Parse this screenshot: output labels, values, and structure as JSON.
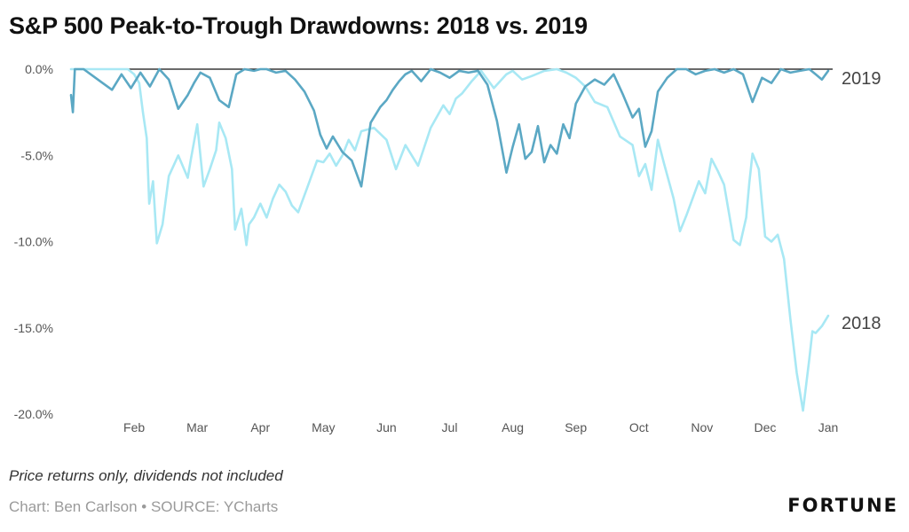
{
  "title": "S&P 500 Peak-to-Trough Drawdowns: 2018 vs. 2019",
  "footnote": "Price returns only, dividends not included",
  "credit": "Chart: Ben Carlson • SOURCE: YCharts",
  "brand": "FORTUNE",
  "colors": {
    "s2018": "#a8e8f4",
    "s2019": "#5ba8c4",
    "zero_line": "#111111"
  },
  "chart_data": {
    "type": "line",
    "title": "S&P 500 Peak-to-Trough Drawdowns: 2018 vs. 2019",
    "xlabel": "",
    "ylabel": "",
    "x_ticks": [
      "Feb",
      "Mar",
      "Apr",
      "May",
      "Jun",
      "Jul",
      "Aug",
      "Sep",
      "Oct",
      "Nov",
      "Dec",
      "Jan"
    ],
    "y_ticks": [
      "0.0%",
      "-5.0%",
      "-10.0%",
      "-15.0%",
      "-20.0%"
    ],
    "ylim": [
      -20,
      0
    ],
    "x_unit": "month (0 = Jan 1, 12 = Jan 1 next year)",
    "grid": false,
    "series": [
      {
        "name": "2018",
        "x": [
          0.0,
          0.3,
          0.6,
          0.9,
          1.0,
          1.08,
          1.14,
          1.2,
          1.24,
          1.3,
          1.36,
          1.45,
          1.55,
          1.7,
          1.85,
          1.9,
          2.0,
          2.1,
          2.2,
          2.3,
          2.35,
          2.45,
          2.55,
          2.6,
          2.7,
          2.78,
          2.82,
          2.9,
          3.0,
          3.1,
          3.2,
          3.3,
          3.4,
          3.5,
          3.6,
          3.75,
          3.9,
          4.0,
          4.1,
          4.2,
          4.3,
          4.4,
          4.5,
          4.6,
          4.8,
          5.0,
          5.15,
          5.3,
          5.5,
          5.7,
          5.9,
          6.0,
          6.1,
          6.2,
          6.35,
          6.5,
          6.7,
          6.9,
          7.0,
          7.15,
          7.3,
          7.5,
          7.7,
          7.85,
          8.0,
          8.15,
          8.3,
          8.5,
          8.7,
          8.9,
          9.0,
          9.1,
          9.2,
          9.3,
          9.4,
          9.55,
          9.65,
          9.75,
          9.85,
          9.95,
          10.05,
          10.15,
          10.25,
          10.35,
          10.5,
          10.6,
          10.7,
          10.75,
          10.8,
          10.9,
          11.0,
          11.1,
          11.2,
          11.3,
          11.4,
          11.5,
          11.6,
          11.7,
          11.75,
          11.8,
          11.9,
          12.0
        ],
        "values": [
          0.0,
          0.0,
          0.0,
          0.0,
          -0.3,
          -0.8,
          -2.5,
          -4.0,
          -7.8,
          -6.5,
          -10.1,
          -9.0,
          -6.2,
          -5.0,
          -6.3,
          -5.2,
          -3.2,
          -6.8,
          -5.8,
          -4.7,
          -3.1,
          -4.0,
          -5.8,
          -9.3,
          -8.1,
          -10.2,
          -9.0,
          -8.6,
          -7.8,
          -8.6,
          -7.5,
          -6.7,
          -7.1,
          -7.9,
          -8.3,
          -6.8,
          -5.3,
          -5.4,
          -4.9,
          -5.6,
          -5.0,
          -4.1,
          -4.7,
          -3.6,
          -3.4,
          -4.1,
          -5.8,
          -4.4,
          -5.6,
          -3.4,
          -2.1,
          -2.6,
          -1.7,
          -1.4,
          -0.7,
          -0.1,
          -1.1,
          -0.3,
          -0.1,
          -0.6,
          -0.4,
          -0.1,
          0.0,
          -0.2,
          -0.5,
          -1.0,
          -1.9,
          -2.2,
          -3.9,
          -4.4,
          -6.2,
          -5.5,
          -7.0,
          -4.1,
          -5.5,
          -7.5,
          -9.4,
          -8.5,
          -7.5,
          -6.5,
          -7.2,
          -5.2,
          -5.9,
          -6.7,
          -9.9,
          -10.2,
          -8.6,
          -6.6,
          -4.9,
          -5.8,
          -9.7,
          -10.0,
          -9.6,
          -11.0,
          -14.5,
          -17.6,
          -19.8,
          -16.8,
          -15.2,
          -15.3,
          -14.9,
          -14.3
        ]
      },
      {
        "name": "2019",
        "x": [
          0.0,
          0.03,
          0.06,
          0.1,
          0.2,
          0.35,
          0.5,
          0.65,
          0.8,
          0.95,
          1.1,
          1.25,
          1.4,
          1.55,
          1.7,
          1.85,
          1.95,
          2.05,
          2.2,
          2.35,
          2.5,
          2.62,
          2.75,
          2.9,
          3.0,
          3.1,
          3.25,
          3.4,
          3.55,
          3.7,
          3.85,
          3.95,
          4.05,
          4.15,
          4.3,
          4.45,
          4.6,
          4.75,
          4.9,
          5.0,
          5.1,
          5.2,
          5.3,
          5.4,
          5.55,
          5.7,
          5.85,
          6.0,
          6.15,
          6.3,
          6.45,
          6.6,
          6.75,
          6.9,
          7.0,
          7.1,
          7.2,
          7.3,
          7.4,
          7.5,
          7.6,
          7.7,
          7.8,
          7.9,
          8.0,
          8.15,
          8.3,
          8.45,
          8.6,
          8.75,
          8.9,
          9.0,
          9.1,
          9.2,
          9.3,
          9.45,
          9.6,
          9.75,
          9.9,
          10.05,
          10.2,
          10.35,
          10.5,
          10.65,
          10.8,
          10.95,
          11.1,
          11.25,
          11.4,
          11.55,
          11.7,
          11.8,
          11.9,
          12.0
        ],
        "values": [
          -1.5,
          -2.5,
          0.0,
          0.0,
          0.0,
          -0.4,
          -0.8,
          -1.2,
          -0.3,
          -1.1,
          -0.2,
          -1.0,
          0.0,
          -0.6,
          -2.3,
          -1.5,
          -0.8,
          -0.2,
          -0.5,
          -1.8,
          -2.2,
          -0.3,
          0.0,
          -0.1,
          0.0,
          0.0,
          -0.2,
          -0.1,
          -0.6,
          -1.3,
          -2.4,
          -3.8,
          -4.6,
          -3.9,
          -4.8,
          -5.3,
          -6.8,
          -3.1,
          -2.2,
          -1.8,
          -1.2,
          -0.7,
          -0.3,
          -0.1,
          -0.7,
          0.0,
          -0.2,
          -0.5,
          -0.1,
          -0.2,
          -0.1,
          -0.9,
          -3.0,
          -6.0,
          -4.5,
          -3.2,
          -5.2,
          -4.8,
          -3.3,
          -5.4,
          -4.4,
          -4.9,
          -3.2,
          -4.0,
          -2.0,
          -1.0,
          -0.6,
          -0.9,
          -0.3,
          -1.5,
          -2.8,
          -2.3,
          -4.5,
          -3.6,
          -1.3,
          -0.5,
          0.0,
          0.0,
          -0.3,
          -0.1,
          0.0,
          -0.2,
          0.0,
          -0.3,
          -1.9,
          -0.5,
          -0.8,
          0.0,
          -0.2,
          -0.1,
          0.0,
          -0.3,
          -0.6,
          -0.1
        ]
      }
    ],
    "series_labels": [
      {
        "text": "2019",
        "series": "2019"
      },
      {
        "text": "2018",
        "series": "2018"
      }
    ]
  }
}
